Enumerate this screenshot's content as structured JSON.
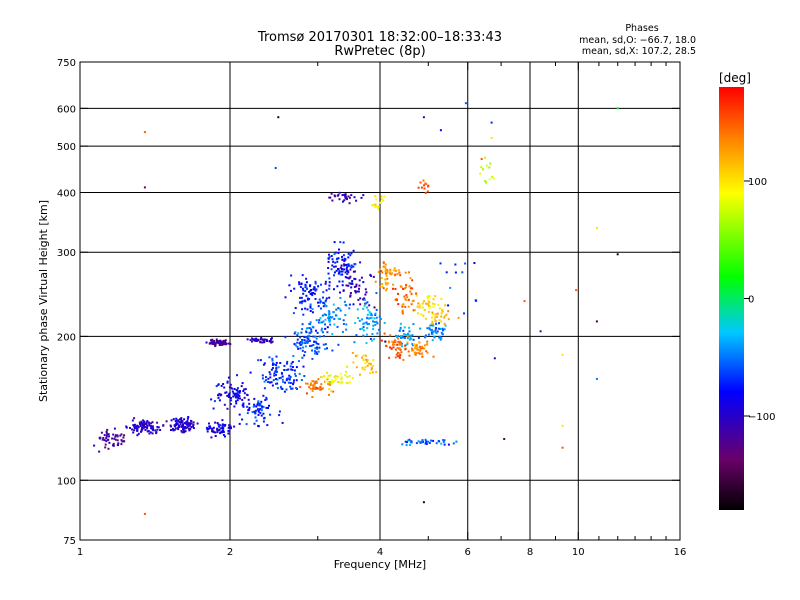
{
  "chart_data": {
    "type": "scatter",
    "title": "Tromsø 20170301 18:32:00–18:33:43",
    "subtitle": "RwPretec (8p)",
    "xlabel": "Frequency [MHz]",
    "ylabel": "Stationary phase Virtual Height [km]",
    "x_scale": "log",
    "y_scale": "log",
    "xlim": [
      1,
      16
    ],
    "ylim": [
      75,
      750
    ],
    "x_ticks": [
      1,
      2,
      4,
      6,
      8,
      10,
      16
    ],
    "x_tick_labels": [
      "1",
      "2",
      "4",
      "6",
      "8",
      "10",
      "16"
    ],
    "x_minor_ticks": [
      3,
      5,
      7,
      9,
      11,
      12,
      13,
      14,
      15
    ],
    "y_ticks": [
      75,
      100,
      200,
      300,
      400,
      500,
      600,
      750
    ],
    "y_tick_labels": [
      "75",
      "100",
      "200",
      "300",
      "400",
      "500",
      "600",
      "750"
    ],
    "x_gridlines": [
      2,
      4,
      6,
      8,
      10
    ],
    "y_gridlines": [
      100,
      200,
      300,
      400,
      500,
      600
    ],
    "grid": true,
    "legend": {
      "title": "Phases",
      "lines": [
        "mean, sd,O: −66.7, 18.0",
        "mean, sd,X: 107.2, 28.5"
      ],
      "placement": "top-right"
    },
    "colorbar": {
      "label": "[deg]",
      "min": -180,
      "max": 180,
      "ticks": [
        -100,
        0,
        100
      ],
      "tick_labels": [
        "−100",
        "0",
        "100"
      ],
      "colormap": "black-purple-blue-cyan-green-yellow-red"
    },
    "clusters": [
      {
        "x": 1.15,
        "y": 122,
        "sx": 0.04,
        "sy": 0.02,
        "n": 50,
        "phase": -120
      },
      {
        "x": 1.35,
        "y": 129,
        "sx": 0.03,
        "sy": 0.015,
        "n": 90,
        "phase": -100
      },
      {
        "x": 1.6,
        "y": 130,
        "sx": 0.03,
        "sy": 0.015,
        "n": 90,
        "phase": -100
      },
      {
        "x": 1.9,
        "y": 128,
        "sx": 0.03,
        "sy": 0.015,
        "n": 60,
        "phase": -90
      },
      {
        "x": 1.9,
        "y": 194,
        "sx": 0.02,
        "sy": 0.006,
        "n": 80,
        "phase": -115
      },
      {
        "x": 2.3,
        "y": 196,
        "sx": 0.03,
        "sy": 0.006,
        "n": 40,
        "phase": -105
      },
      {
        "x": 2.05,
        "y": 150,
        "sx": 0.05,
        "sy": 0.03,
        "n": 80,
        "phase": -85
      },
      {
        "x": 2.3,
        "y": 140,
        "sx": 0.04,
        "sy": 0.03,
        "n": 60,
        "phase": -70
      },
      {
        "x": 2.55,
        "y": 165,
        "sx": 0.04,
        "sy": 0.04,
        "n": 100,
        "phase": -70
      },
      {
        "x": 2.9,
        "y": 195,
        "sx": 0.04,
        "sy": 0.04,
        "n": 100,
        "phase": -60
      },
      {
        "x": 2.9,
        "y": 245,
        "sx": 0.04,
        "sy": 0.04,
        "n": 80,
        "phase": -75
      },
      {
        "x": 3.35,
        "y": 280,
        "sx": 0.03,
        "sy": 0.05,
        "n": 90,
        "phase": -75
      },
      {
        "x": 3.6,
        "y": 255,
        "sx": 0.03,
        "sy": 0.05,
        "n": 50,
        "phase": -105
      },
      {
        "x": 3.2,
        "y": 220,
        "sx": 0.04,
        "sy": 0.04,
        "n": 70,
        "phase": -45
      },
      {
        "x": 3.4,
        "y": 390,
        "sx": 0.03,
        "sy": 0.01,
        "n": 30,
        "phase": -110
      },
      {
        "x": 3.8,
        "y": 215,
        "sx": 0.03,
        "sy": 0.04,
        "n": 60,
        "phase": -40
      },
      {
        "x": 4.5,
        "y": 200,
        "sx": 0.02,
        "sy": 0.02,
        "n": 40,
        "phase": -40
      },
      {
        "x": 5.2,
        "y": 205,
        "sx": 0.025,
        "sy": 0.02,
        "n": 45,
        "phase": -45
      },
      {
        "x": 4.15,
        "y": 270,
        "sx": 0.025,
        "sy": 0.04,
        "n": 50,
        "phase": 130
      },
      {
        "x": 4.5,
        "y": 245,
        "sx": 0.025,
        "sy": 0.04,
        "n": 45,
        "phase": 145
      },
      {
        "x": 4.35,
        "y": 190,
        "sx": 0.03,
        "sy": 0.03,
        "n": 50,
        "phase": 150
      },
      {
        "x": 4.8,
        "y": 188,
        "sx": 0.025,
        "sy": 0.02,
        "n": 40,
        "phase": 135
      },
      {
        "x": 5.0,
        "y": 235,
        "sx": 0.025,
        "sy": 0.02,
        "n": 35,
        "phase": 100
      },
      {
        "x": 5.3,
        "y": 222,
        "sx": 0.03,
        "sy": 0.02,
        "n": 30,
        "phase": 115
      },
      {
        "x": 3.0,
        "y": 157,
        "sx": 0.03,
        "sy": 0.02,
        "n": 45,
        "phase": 140
      },
      {
        "x": 3.3,
        "y": 163,
        "sx": 0.03,
        "sy": 0.02,
        "n": 35,
        "phase": 85
      },
      {
        "x": 3.75,
        "y": 175,
        "sx": 0.03,
        "sy": 0.02,
        "n": 30,
        "phase": 115
      },
      {
        "x": 3.95,
        "y": 382,
        "sx": 0.012,
        "sy": 0.015,
        "n": 15,
        "phase": 100
      },
      {
        "x": 4.9,
        "y": 412,
        "sx": 0.012,
        "sy": 0.015,
        "n": 12,
        "phase": 160
      },
      {
        "x": 5.0,
        "y": 120,
        "sx": 0.06,
        "sy": 0.006,
        "n": 40,
        "phase": -55
      },
      {
        "x": 6.5,
        "y": 440,
        "sx": 0.02,
        "sy": 0.04,
        "n": 12,
        "phase": 70
      },
      {
        "x": 5.8,
        "y": 260,
        "sx": 0.04,
        "sy": 0.06,
        "n": 12,
        "phase": -70
      }
    ],
    "points": [
      {
        "x": 1.35,
        "y": 535,
        "phase": 150
      },
      {
        "x": 1.35,
        "y": 410,
        "phase": -140
      },
      {
        "x": 1.35,
        "y": 85,
        "phase": 150
      },
      {
        "x": 2.2,
        "y": 168,
        "phase": -80
      },
      {
        "x": 2.5,
        "y": 575,
        "phase": -170
      },
      {
        "x": 2.47,
        "y": 450,
        "phase": -60
      },
      {
        "x": 3.9,
        "y": 230,
        "phase": -150
      },
      {
        "x": 4.1,
        "y": 195,
        "phase": -170
      },
      {
        "x": 4.9,
        "y": 90,
        "phase": -170
      },
      {
        "x": 5.95,
        "y": 615,
        "phase": -60
      },
      {
        "x": 6.4,
        "y": 470,
        "phase": 150
      },
      {
        "x": 6.7,
        "y": 520,
        "phase": 100
      },
      {
        "x": 6.7,
        "y": 560,
        "phase": -70
      },
      {
        "x": 7.1,
        "y": 122,
        "phase": -150
      },
      {
        "x": 6.8,
        "y": 180,
        "phase": -100
      },
      {
        "x": 7.8,
        "y": 237,
        "phase": 150
      },
      {
        "x": 8.4,
        "y": 205,
        "phase": -110
      },
      {
        "x": 9.3,
        "y": 183,
        "phase": 100
      },
      {
        "x": 9.3,
        "y": 130,
        "phase": 100
      },
      {
        "x": 9.3,
        "y": 117,
        "phase": 150
      },
      {
        "x": 10.9,
        "y": 163,
        "phase": -50
      },
      {
        "x": 10.9,
        "y": 215,
        "phase": -150
      },
      {
        "x": 12.0,
        "y": 297,
        "phase": -170
      },
      {
        "x": 12.0,
        "y": 600,
        "phase": 10
      },
      {
        "x": 10.9,
        "y": 337,
        "phase": 100
      },
      {
        "x": 9.9,
        "y": 250,
        "phase": 150
      },
      {
        "x": 4.9,
        "y": 575,
        "phase": -110
      },
      {
        "x": 5.3,
        "y": 540,
        "phase": -90
      }
    ]
  }
}
